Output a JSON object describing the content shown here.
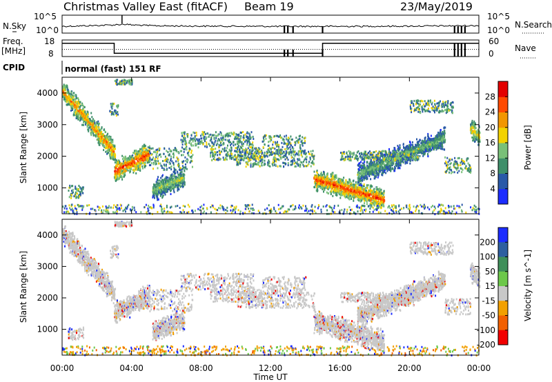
{
  "header": {
    "station": "Christmas Valley East (fitACF)",
    "beam": "Beam 19",
    "date": "23/May/2019"
  },
  "noise_panel": {
    "left_label": "N.Sky",
    "left_ticks": [
      "10^5",
      "10^0"
    ],
    "right_label": "N.Search",
    "right_ticks": [
      "10^5",
      "10^0"
    ]
  },
  "freq_panel": {
    "left_label_line1": "Freq.",
    "left_label_line2": "[MHz]",
    "left_ticks": [
      "18",
      "8"
    ],
    "right_label": "Nave",
    "right_ticks": [
      "60",
      "0"
    ]
  },
  "cpid_panel": {
    "label": "CPID",
    "mode_text": "normal (fast) 151 RF"
  },
  "x_axis": {
    "label": "Time UT",
    "ticks": [
      "00:00",
      "04:00",
      "08:00",
      "12:00",
      "16:00",
      "20:00",
      "00:00"
    ]
  },
  "chart_data": [
    {
      "type": "line",
      "title": "N.Sky / N.Search",
      "y_scale": "log",
      "ylim": [
        1,
        100000
      ],
      "x_unit": "hours UT",
      "series": [
        {
          "values_x": [
            0,
            1,
            2,
            3,
            3.5,
            4,
            5,
            6,
            8,
            10,
            12,
            14,
            16,
            18,
            20,
            22,
            24
          ],
          "values_y": [
            40,
            60,
            90,
            150,
            300,
            150,
            80,
            60,
            50,
            45,
            40,
            40,
            40,
            45,
            50,
            60,
            80
          ]
        }
      ],
      "gaps_hours": [
        12.8,
        13.0,
        13.3,
        15.0,
        22.6,
        22.8,
        23.0,
        23.2
      ]
    },
    {
      "type": "line",
      "title": "Freq. / Nave",
      "ylim_left": [
        8,
        18
      ],
      "ylim_right": [
        0,
        60
      ],
      "frequency_steps": [
        {
          "x_start": 0,
          "x_end": 3.0,
          "mhz": 16
        },
        {
          "x_start": 3.0,
          "x_end": 15.0,
          "mhz": 10
        },
        {
          "x_start": 15.0,
          "x_end": 24.0,
          "mhz": 16
        }
      ],
      "nave_level": 26
    },
    {
      "type": "heatmap",
      "title": "Power [dB]",
      "xlabel": "Time UT",
      "ylabel": "Slant Range [km]",
      "xlim": [
        0,
        24
      ],
      "ylim": [
        180,
        4500
      ],
      "yticks": [
        1000,
        2000,
        3000,
        4000
      ],
      "colorbar": {
        "label": "Power [dB]",
        "ticks": [
          4,
          8,
          12,
          16,
          20,
          24,
          28
        ],
        "colors": [
          "#1c2cff",
          "#2a59a8",
          "#3f8f6a",
          "#79c078",
          "#f2d200",
          "#f29600",
          "#ff4a00",
          "#e30000"
        ]
      },
      "features": [
        {
          "x_start": 0.0,
          "x_end": 3.0,
          "range_start": 4100,
          "range_end": 2150,
          "peak_db": 24
        },
        {
          "x_start": 3.0,
          "x_end": 5.0,
          "range_start": 1550,
          "range_end": 2100,
          "peak_db": 28
        },
        {
          "x_start": 5.2,
          "x_end": 7.0,
          "range_start": 950,
          "range_end": 1350,
          "peak_db": 16
        },
        {
          "x_start": 14.5,
          "x_end": 18.5,
          "range_start": 1300,
          "range_end": 650,
          "peak_db": 28
        },
        {
          "x_start": 17.0,
          "x_end": 22.0,
          "range_start": 1450,
          "range_end": 2600,
          "peak_db": 14
        },
        {
          "x_start": 23.5,
          "x_end": 24.0,
          "range_start": 2900,
          "range_end": 2650,
          "peak_db": 20
        }
      ]
    },
    {
      "type": "heatmap",
      "title": "Velocity [m s^-1]",
      "xlabel": "Time UT",
      "ylabel": "Slant Range [km]",
      "xlim": [
        0,
        24
      ],
      "ylim": [
        180,
        4500
      ],
      "yticks": [
        1000,
        2000,
        3000,
        4000
      ],
      "colorbar": {
        "label": "Velocity [m s^-1]",
        "ticks": [
          200,
          100,
          50,
          15,
          -15,
          -50,
          -100,
          -200
        ],
        "colors": [
          "#1c2cff",
          "#2e5fa0",
          "#3f8f5a",
          "#6cc84a",
          "#c8c8c8",
          "#f2a000",
          "#f26000",
          "#f20000"
        ]
      },
      "dominant_velocity": "-15 to 15 (ground scatter, grey)"
    }
  ]
}
